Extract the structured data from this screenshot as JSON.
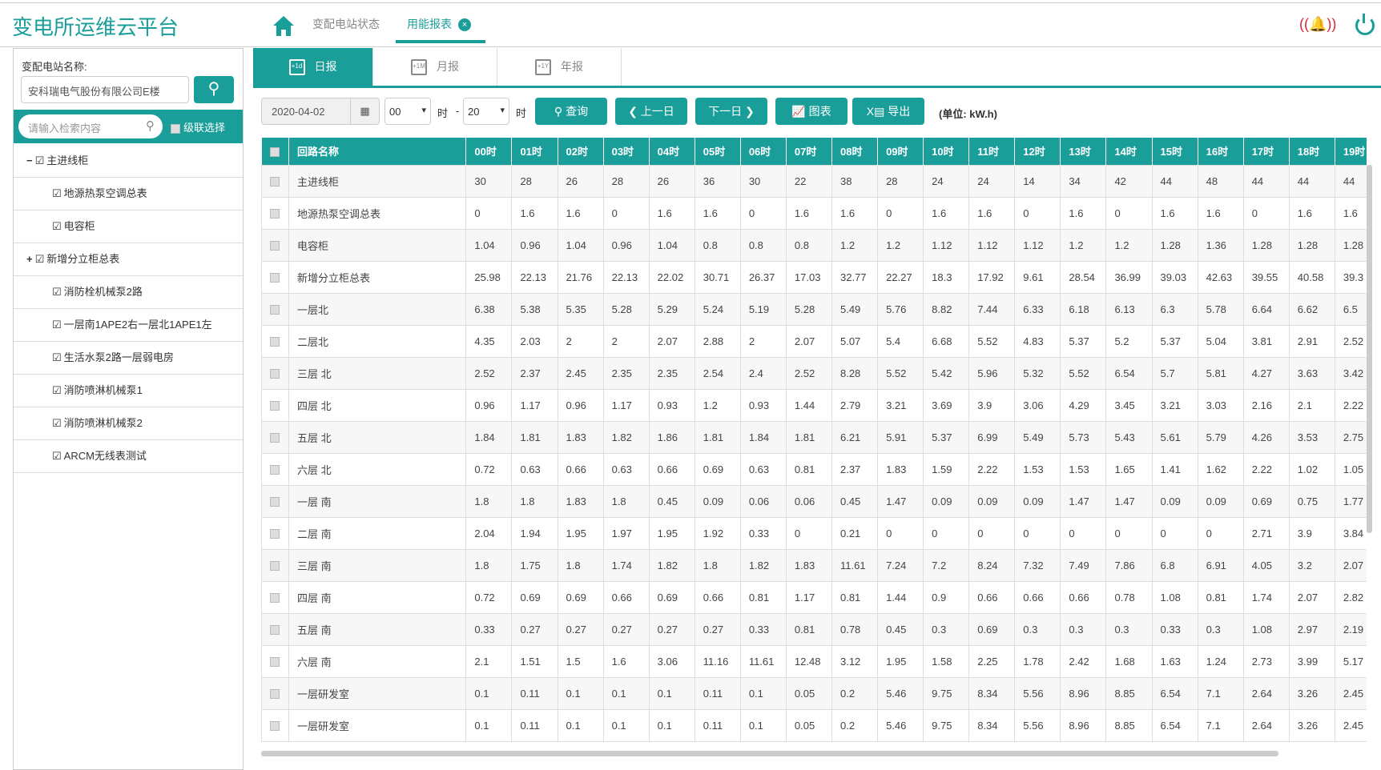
{
  "header": {
    "title": "变电所运维云平台",
    "nav_tabs": [
      {
        "label": "变配电站状态"
      },
      {
        "label": "用能报表",
        "active": true
      }
    ],
    "close_icon": "×"
  },
  "sidebar": {
    "station_label": "变配电站名称:",
    "station_value": "安科瑞电气股份有限公司E楼",
    "search_placeholder": "请输入检索内容",
    "cascade_label": "级联选择",
    "tree": [
      {
        "label": "主进线柜",
        "expander": "−",
        "level": 0
      },
      {
        "label": "地源热泵空调总表",
        "level": 1
      },
      {
        "label": "电容柜",
        "level": 1
      },
      {
        "label": "新增分立柜总表",
        "expander": "+",
        "level": 0
      },
      {
        "label": "消防栓机械泵2路",
        "level": 1
      },
      {
        "label": "一层南1APE2右一层北1APE1左",
        "level": 1
      },
      {
        "label": "生活水泵2路一层弱电房",
        "level": 1
      },
      {
        "label": "消防喷淋机械泵1",
        "level": 1
      },
      {
        "label": "消防喷淋机械泵2",
        "level": 1
      },
      {
        "label": "ARCM无线表测试",
        "level": 1
      }
    ]
  },
  "report_tabs": [
    {
      "label": "日报",
      "icon": "+1d",
      "active": true
    },
    {
      "label": "月报",
      "icon": "+1M"
    },
    {
      "label": "年报",
      "icon": "+1Y"
    }
  ],
  "toolbar": {
    "date": "2020-04-02",
    "hour_from": "00",
    "hour_to": "20",
    "hour_unit": "时",
    "dash": "-",
    "query": "查询",
    "prev": "上一日",
    "next": "下一日",
    "chart": "图表",
    "export": "导出",
    "unit": "(单位: kW.h)"
  },
  "table": {
    "name_header": "回路名称",
    "hours": [
      "00时",
      "01时",
      "02时",
      "03时",
      "04时",
      "05时",
      "06时",
      "07时",
      "08时",
      "09时",
      "10时",
      "11时",
      "12时",
      "13时",
      "14时",
      "15时",
      "16时",
      "17时",
      "18时",
      "19时"
    ],
    "rows": [
      {
        "name": "主进线柜",
        "values": [
          "30",
          "28",
          "26",
          "28",
          "26",
          "36",
          "30",
          "22",
          "38",
          "28",
          "24",
          "24",
          "14",
          "34",
          "42",
          "44",
          "48",
          "44",
          "44",
          "44"
        ]
      },
      {
        "name": "地源热泵空调总表",
        "values": [
          "0",
          "1.6",
          "1.6",
          "0",
          "1.6",
          "1.6",
          "0",
          "1.6",
          "1.6",
          "0",
          "1.6",
          "1.6",
          "0",
          "1.6",
          "0",
          "1.6",
          "1.6",
          "0",
          "1.6",
          "1.6"
        ]
      },
      {
        "name": "电容柜",
        "values": [
          "1.04",
          "0.96",
          "1.04",
          "0.96",
          "1.04",
          "0.8",
          "0.8",
          "0.8",
          "1.2",
          "1.2",
          "1.12",
          "1.12",
          "1.12",
          "1.2",
          "1.2",
          "1.28",
          "1.36",
          "1.28",
          "1.28",
          "1.28"
        ]
      },
      {
        "name": "新增分立柜总表",
        "values": [
          "25.98",
          "22.13",
          "21.76",
          "22.13",
          "22.02",
          "30.71",
          "26.37",
          "17.03",
          "32.77",
          "22.27",
          "18.3",
          "17.92",
          "9.61",
          "28.54",
          "36.99",
          "39.03",
          "42.63",
          "39.55",
          "40.58",
          "39.3"
        ]
      },
      {
        "name": "一层北",
        "values": [
          "6.38",
          "5.38",
          "5.35",
          "5.28",
          "5.29",
          "5.24",
          "5.19",
          "5.28",
          "5.49",
          "5.76",
          "8.82",
          "7.44",
          "6.33",
          "6.18",
          "6.13",
          "6.3",
          "5.78",
          "6.64",
          "6.62",
          "6.5"
        ]
      },
      {
        "name": "二层北",
        "values": [
          "4.35",
          "2.03",
          "2",
          "2",
          "2.07",
          "2.88",
          "2",
          "2.07",
          "5.07",
          "5.4",
          "6.68",
          "5.52",
          "4.83",
          "5.37",
          "5.2",
          "5.37",
          "5.04",
          "3.81",
          "2.91",
          "2.52"
        ]
      },
      {
        "name": "三层 北",
        "values": [
          "2.52",
          "2.37",
          "2.45",
          "2.35",
          "2.35",
          "2.54",
          "2.4",
          "2.52",
          "8.28",
          "5.52",
          "5.42",
          "5.96",
          "5.32",
          "5.52",
          "6.54",
          "5.7",
          "5.81",
          "4.27",
          "3.63",
          "3.42"
        ]
      },
      {
        "name": "四层 北",
        "values": [
          "0.96",
          "1.17",
          "0.96",
          "1.17",
          "0.93",
          "1.2",
          "0.93",
          "1.44",
          "2.79",
          "3.21",
          "3.69",
          "3.9",
          "3.06",
          "4.29",
          "3.45",
          "3.21",
          "3.03",
          "2.16",
          "2.1",
          "2.22"
        ]
      },
      {
        "name": "五层 北",
        "values": [
          "1.84",
          "1.81",
          "1.83",
          "1.82",
          "1.86",
          "1.81",
          "1.84",
          "1.81",
          "6.21",
          "5.91",
          "5.37",
          "6.99",
          "5.49",
          "5.73",
          "5.43",
          "5.61",
          "5.79",
          "4.26",
          "3.53",
          "2.75"
        ]
      },
      {
        "name": "六层 北",
        "values": [
          "0.72",
          "0.63",
          "0.66",
          "0.63",
          "0.66",
          "0.69",
          "0.63",
          "0.81",
          "2.37",
          "1.83",
          "1.59",
          "2.22",
          "1.53",
          "1.53",
          "1.65",
          "1.41",
          "1.62",
          "2.22",
          "1.02",
          "1.05"
        ]
      },
      {
        "name": "一层 南",
        "values": [
          "1.8",
          "1.8",
          "1.83",
          "1.8",
          "0.45",
          "0.09",
          "0.06",
          "0.06",
          "0.45",
          "1.47",
          "0.09",
          "0.09",
          "0.09",
          "1.47",
          "1.47",
          "0.09",
          "0.09",
          "0.69",
          "0.75",
          "1.77"
        ]
      },
      {
        "name": "二层 南",
        "values": [
          "2.04",
          "1.94",
          "1.95",
          "1.97",
          "1.95",
          "1.92",
          "0.33",
          "0",
          "0.21",
          "0",
          "0",
          "0",
          "0",
          "0",
          "0",
          "0",
          "0",
          "2.71",
          "3.9",
          "3.84"
        ]
      },
      {
        "name": "三层 南",
        "values": [
          "1.8",
          "1.75",
          "1.8",
          "1.74",
          "1.82",
          "1.8",
          "1.82",
          "1.83",
          "11.61",
          "7.24",
          "7.2",
          "8.24",
          "7.32",
          "7.49",
          "7.86",
          "6.8",
          "6.91",
          "4.05",
          "3.2",
          "2.07"
        ]
      },
      {
        "name": "四层 南",
        "values": [
          "0.72",
          "0.69",
          "0.69",
          "0.66",
          "0.69",
          "0.66",
          "0.81",
          "1.17",
          "0.81",
          "1.44",
          "0.9",
          "0.66",
          "0.66",
          "0.66",
          "0.78",
          "1.08",
          "0.81",
          "1.74",
          "2.07",
          "2.82"
        ]
      },
      {
        "name": "五层 南",
        "values": [
          "0.33",
          "0.27",
          "0.27",
          "0.27",
          "0.27",
          "0.27",
          "0.33",
          "0.81",
          "0.78",
          "0.45",
          "0.3",
          "0.69",
          "0.3",
          "0.3",
          "0.3",
          "0.33",
          "0.3",
          "1.08",
          "2.97",
          "2.19"
        ]
      },
      {
        "name": "六层 南",
        "values": [
          "2.1",
          "1.51",
          "1.5",
          "1.6",
          "3.06",
          "11.16",
          "11.61",
          "12.48",
          "3.12",
          "1.95",
          "1.58",
          "2.25",
          "1.78",
          "2.42",
          "1.68",
          "1.63",
          "1.24",
          "2.73",
          "3.99",
          "5.17"
        ]
      },
      {
        "name": "一层研发室",
        "values": [
          "0.1",
          "0.11",
          "0.1",
          "0.1",
          "0.1",
          "0.11",
          "0.1",
          "0.05",
          "0.2",
          "5.46",
          "9.75",
          "8.34",
          "5.56",
          "8.96",
          "8.85",
          "6.54",
          "7.1",
          "2.64",
          "3.26",
          "2.45"
        ]
      },
      {
        "name": "一层研发室",
        "values": [
          "0.1",
          "0.11",
          "0.1",
          "0.1",
          "0.1",
          "0.11",
          "0.1",
          "0.05",
          "0.2",
          "5.46",
          "9.75",
          "8.34",
          "5.56",
          "8.96",
          "8.85",
          "6.54",
          "7.1",
          "2.64",
          "3.26",
          "2.45"
        ]
      }
    ]
  },
  "colors": {
    "accent": "#1a9e9a",
    "alarm": "#d22a2a"
  }
}
